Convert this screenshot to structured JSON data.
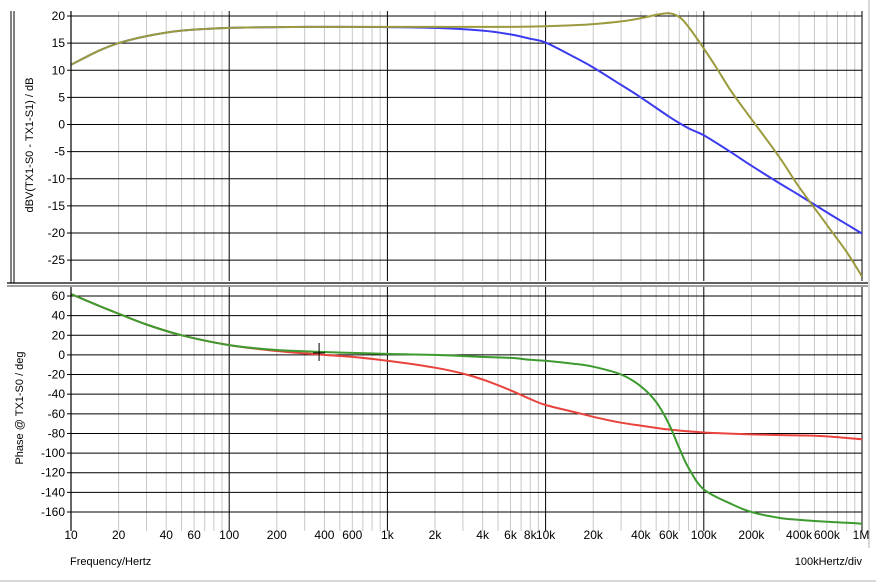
{
  "chart_data": [
    {
      "type": "line",
      "xlabel": "Frequency/Hertz",
      "ylabel": "dBV(TX1-S0 - TX1-S1) / dB",
      "xscale": "log",
      "xlim": [
        10,
        1000000
      ],
      "ylim": [
        -29,
        21
      ],
      "x_tick_labels": [
        "10",
        "20",
        "40",
        "60",
        "100",
        "200",
        "400",
        "600",
        "1k",
        "2k",
        "4k",
        "6k",
        "8k",
        "10k",
        "20k",
        "40k",
        "60k",
        "100k",
        "200k",
        "400k",
        "600k",
        "1M"
      ],
      "y_ticks": [
        20,
        15,
        10,
        5,
        0,
        -5,
        -10,
        -15,
        -20,
        -25
      ],
      "grid": true,
      "legend": "none",
      "series": [
        {
          "color": "#3b3bf0",
          "x": [
            10,
            15,
            20,
            30,
            50,
            100,
            200,
            500,
            1000,
            2000,
            4000,
            6000,
            8000,
            10000,
            15000,
            20000,
            30000,
            40000,
            60000,
            80000,
            100000,
            150000,
            200000,
            300000,
            400000,
            600000,
            800000,
            1000000
          ],
          "values": [
            11.0,
            13.6,
            15.0,
            16.3,
            17.3,
            17.8,
            17.95,
            18.0,
            17.95,
            17.8,
            17.3,
            16.6,
            15.8,
            15.1,
            12.5,
            10.5,
            7.3,
            5.0,
            1.5,
            -0.7,
            -2.0,
            -5.2,
            -7.6,
            -10.8,
            -13.0,
            -16.2,
            -18.4,
            -20.1
          ]
        },
        {
          "color": "#9b9b3e",
          "x": [
            10,
            15,
            20,
            30,
            50,
            100,
            200,
            500,
            1000,
            2000,
            4000,
            6000,
            8000,
            10000,
            15000,
            20000,
            30000,
            40000,
            50000,
            60000,
            70000,
            80000,
            100000,
            120000,
            150000,
            200000,
            300000,
            400000,
            600000,
            800000,
            1000000
          ],
          "values": [
            11.0,
            13.6,
            15.0,
            16.3,
            17.3,
            17.8,
            17.95,
            18.0,
            18.0,
            18.0,
            18.0,
            18.0,
            18.05,
            18.1,
            18.3,
            18.5,
            19.0,
            19.6,
            20.2,
            20.5,
            19.8,
            18.0,
            14.0,
            10.5,
            6.0,
            1.0,
            -6.0,
            -11.5,
            -18.5,
            -23.5,
            -28.0
          ]
        }
      ]
    },
    {
      "type": "line",
      "xlabel": "Frequency/Hertz",
      "ylabel": "Phase @ TX1-S0 / deg",
      "xscale": "log",
      "xlim": [
        10,
        1000000
      ],
      "ylim": [
        -175,
        65
      ],
      "x_tick_labels": [
        "10",
        "20",
        "40",
        "60",
        "100",
        "200",
        "400",
        "600",
        "1k",
        "2k",
        "4k",
        "6k",
        "8k",
        "10k",
        "20k",
        "40k",
        "60k",
        "100k",
        "200k",
        "400k",
        "600k",
        "1M"
      ],
      "y_ticks": [
        60,
        40,
        20,
        0,
        -20,
        -40,
        -60,
        -80,
        -100,
        -120,
        -140,
        -160
      ],
      "grid": true,
      "legend": "none",
      "series": [
        {
          "color": "#e8433c",
          "x": [
            10,
            15,
            20,
            30,
            50,
            100,
            200,
            400,
            600,
            1000,
            2000,
            3000,
            4000,
            6000,
            8000,
            10000,
            15000,
            20000,
            30000,
            40000,
            60000,
            100000,
            200000,
            400000,
            600000,
            1000000
          ],
          "values": [
            62,
            50,
            42,
            31,
            20,
            10,
            4,
            0,
            -2,
            -6,
            -13,
            -19,
            -25,
            -36,
            -45,
            -51,
            -58,
            -63,
            -69,
            -72,
            -76,
            -79,
            -81,
            -82,
            -83,
            -86
          ]
        },
        {
          "color": "#3c9a2e",
          "x": [
            10,
            15,
            20,
            30,
            50,
            100,
            200,
            400,
            600,
            1000,
            2000,
            4000,
            6000,
            8000,
            10000,
            15000,
            20000,
            30000,
            40000,
            50000,
            60000,
            70000,
            80000,
            100000,
            150000,
            200000,
            300000,
            400000,
            600000,
            800000,
            1000000
          ],
          "values": [
            62,
            50,
            42,
            31,
            20,
            10,
            5,
            3,
            2,
            1,
            0,
            -2,
            -3,
            -5,
            -6,
            -9,
            -12,
            -20,
            -32,
            -48,
            -70,
            -95,
            -115,
            -137,
            -152,
            -160,
            -166,
            -168,
            -170,
            -171,
            -172
          ]
        }
      ]
    }
  ],
  "cursor": {
    "x": 370,
    "y": 2
  },
  "footer": {
    "left": "Frequency/Hertz",
    "right": "100kHertz/div"
  },
  "colors": {
    "grid_major": "#000000",
    "grid_minor": "#c8c8c8",
    "text": "#000000",
    "frame": "#000000"
  }
}
